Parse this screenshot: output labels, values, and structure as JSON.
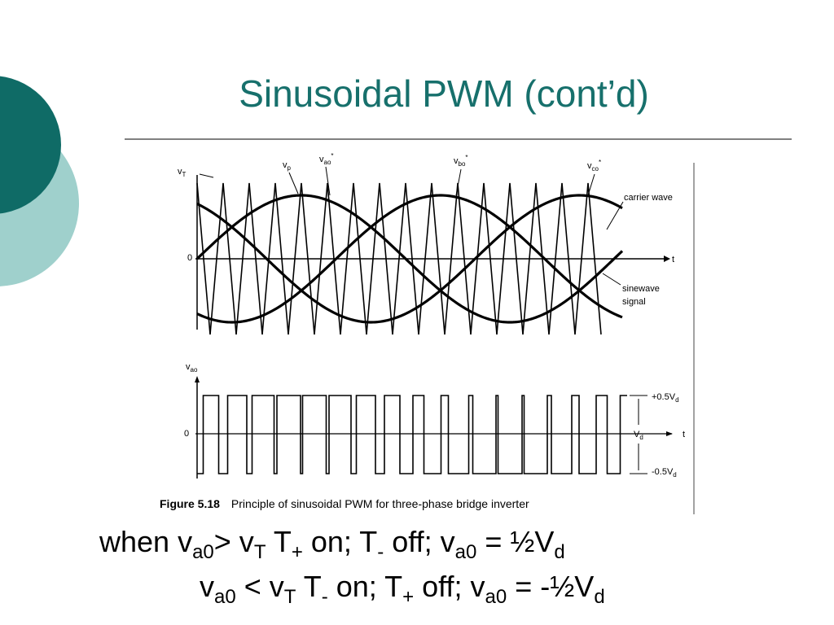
{
  "header": {
    "title": "Sinusoidal PWM (cont’d)"
  },
  "figure": {
    "labels": [
      {
        "text": "v",
        "sub": "T"
      },
      {
        "text": "v",
        "sub": "p"
      },
      {
        "text": "v",
        "sub": "ao",
        "sup": "*"
      },
      {
        "text": "v",
        "sub": "bo",
        "sup": "*"
      },
      {
        "text": "v",
        "sub": "co",
        "sup": "*"
      },
      {
        "text": "carrier wave"
      },
      {
        "text": "0"
      },
      {
        "text": "t"
      },
      {
        "text": "sinewave"
      },
      {
        "text": "signal"
      },
      {
        "text": "v",
        "sub": "ao"
      },
      {
        "text": "0"
      },
      {
        "text": "+0.5V",
        "sub": "d"
      },
      {
        "text": "V",
        "sub": "d"
      },
      {
        "text": "t"
      },
      {
        "text": "-0.5V",
        "sub": "d"
      }
    ],
    "caption_number": "Figure 5.18",
    "caption": "Principle of sinusoidal PWM for three-phase bridge inverter"
  },
  "body": {
    "lines": [
      [
        {
          "text": "when v",
          "sub": "a0"
        },
        {
          "text": "> v",
          "sub": "T"
        },
        {
          "text": " T",
          "sub": "+"
        },
        {
          "text": " on; T",
          "sub": "-"
        },
        {
          "text": " off; v",
          "sub": "a0"
        },
        {
          "text": " = ½V",
          "sub": "d"
        }
      ],
      [
        {
          "text": "v",
          "sub": "a0"
        },
        {
          "text": " < v",
          "sub": "T"
        },
        {
          "text": " T",
          "sub": "-"
        },
        {
          "text": " on; T",
          "sub": "+"
        },
        {
          "text": " off; v",
          "sub": "a0"
        },
        {
          "text": " = -½V",
          "sub": "d"
        }
      ]
    ]
  }
}
